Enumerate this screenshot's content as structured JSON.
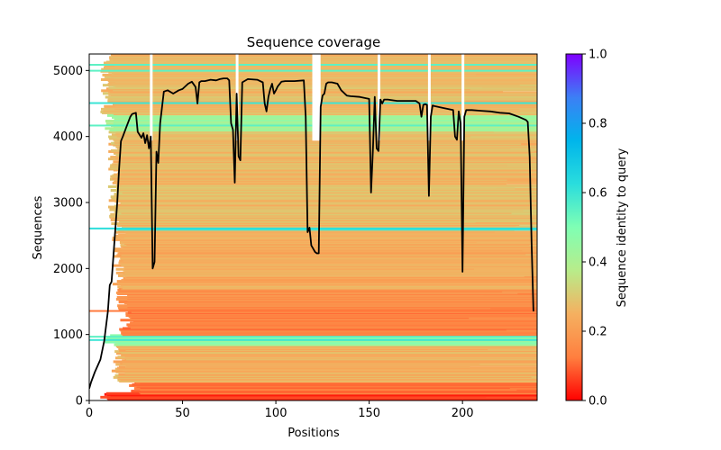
{
  "chart_data": {
    "type": "heatmap",
    "title": "Sequence coverage",
    "xlabel": "Positions",
    "ylabel": "Sequences",
    "xlim": [
      0,
      240
    ],
    "ylim": [
      0,
      5250
    ],
    "xticks": [
      0,
      50,
      100,
      150,
      200
    ],
    "yticks": [
      0,
      1000,
      2000,
      3000,
      4000,
      5000
    ],
    "grid": false,
    "colorbar": {
      "label": "Sequence identity to query",
      "range": [
        0.0,
        1.0
      ],
      "ticks": [
        "0.0",
        "0.2",
        "0.4",
        "0.6",
        "0.8",
        "1.0"
      ],
      "colormap": "rainbow",
      "stops": [
        "#ff0000",
        "#ff7f3f",
        "#f5b060",
        "#b8ec8a",
        "#7fffb4",
        "#2adddd",
        "#00b5eb",
        "#3c7ff5",
        "#7f00ff"
      ]
    },
    "coverage_line": {
      "name": "coverage",
      "color": "#000000",
      "x": [
        0,
        1,
        3,
        6,
        8,
        10,
        11,
        12,
        14,
        15,
        16,
        17,
        18,
        20,
        22,
        23,
        25,
        26,
        28,
        29,
        30,
        31,
        32,
        33,
        34,
        35,
        36,
        37,
        38,
        40,
        42,
        45,
        48,
        50,
        53,
        55,
        57,
        58,
        59,
        60,
        62,
        65,
        68,
        70,
        72,
        74,
        75,
        76,
        77,
        78,
        79,
        80,
        81,
        82,
        85,
        90,
        93,
        94,
        95,
        96,
        97,
        98,
        99,
        100,
        101,
        103,
        105,
        110,
        115,
        116,
        117,
        118,
        119,
        120,
        121,
        122,
        123,
        124,
        125,
        126,
        127,
        128,
        130,
        133,
        135,
        138,
        140,
        145,
        150,
        151,
        152,
        153,
        154,
        155,
        156,
        157,
        158,
        160,
        165,
        170,
        175,
        177,
        178,
        179,
        180,
        181,
        182,
        183,
        184,
        185,
        190,
        195,
        196,
        197,
        198,
        199,
        200,
        201,
        202,
        205,
        210,
        215,
        220,
        225,
        230,
        234,
        235,
        236,
        237,
        238
      ],
      "y": [
        180,
        280,
        430,
        620,
        900,
        1350,
        1750,
        1800,
        2600,
        3000,
        3500,
        3930,
        4000,
        4150,
        4300,
        4340,
        4360,
        4070,
        3980,
        4050,
        3900,
        4020,
        3820,
        4000,
        2000,
        2100,
        3770,
        3600,
        4200,
        4680,
        4700,
        4650,
        4700,
        4720,
        4800,
        4830,
        4750,
        4500,
        4820,
        4840,
        4840,
        4860,
        4850,
        4870,
        4880,
        4880,
        4850,
        4200,
        4100,
        3300,
        4650,
        3700,
        3640,
        4820,
        4870,
        4860,
        4820,
        4500,
        4380,
        4600,
        4720,
        4800,
        4650,
        4700,
        4760,
        4830,
        4840,
        4840,
        4850,
        4300,
        2550,
        2620,
        2350,
        2300,
        2250,
        2230,
        2230,
        4450,
        4620,
        4650,
        4800,
        4820,
        4820,
        4800,
        4700,
        4620,
        4610,
        4600,
        4570,
        3150,
        3800,
        4600,
        3820,
        3780,
        4560,
        4500,
        4560,
        4560,
        4540,
        4540,
        4540,
        4500,
        4300,
        4480,
        4490,
        4480,
        3100,
        4300,
        4470,
        4460,
        4430,
        4400,
        4000,
        3950,
        4380,
        4200,
        1950,
        4300,
        4400,
        4400,
        4390,
        4380,
        4360,
        4350,
        4300,
        4250,
        4220,
        3700,
        2400,
        1350
      ]
    },
    "identity_bands": [
      {
        "y0": 0,
        "y1": 120,
        "x0": 4,
        "x1": 240,
        "identity": 0.05
      },
      {
        "y0": 120,
        "y1": 300,
        "x0": 20,
        "x1": 240,
        "identity": 0.12
      },
      {
        "y0": 300,
        "y1": 850,
        "x0": 12,
        "x1": 240,
        "identity": 0.25
      },
      {
        "y0": 850,
        "y1": 1000,
        "x0": 8,
        "x1": 240,
        "identity": 0.45
      },
      {
        "y0": 1000,
        "y1": 1400,
        "x0": 16,
        "x1": 240,
        "identity": 0.13
      },
      {
        "y0": 1400,
        "y1": 1700,
        "x0": 14,
        "x1": 240,
        "identity": 0.16
      },
      {
        "y0": 1700,
        "y1": 2600,
        "x0": 12,
        "x1": 240,
        "identity": 0.24
      },
      {
        "y0": 2600,
        "y1": 2630,
        "x0": 14,
        "x1": 240,
        "identity": 0.6
      },
      {
        "y0": 2630,
        "y1": 4100,
        "x0": 10,
        "x1": 240,
        "identity": 0.27
      },
      {
        "y0": 4100,
        "y1": 4350,
        "x0": 8,
        "x1": 240,
        "identity": 0.42
      },
      {
        "y0": 4350,
        "y1": 5250,
        "x0": 6,
        "x1": 240,
        "identity": 0.27
      }
    ],
    "highlight_rows": [
      {
        "y": 930,
        "identity": 0.6
      },
      {
        "y": 980,
        "identity": 0.55
      },
      {
        "y": 1370,
        "identity": 0.12
      },
      {
        "y": 2620,
        "identity": 0.62
      },
      {
        "y": 4180,
        "identity": 0.55
      },
      {
        "y": 4520,
        "identity": 0.6
      },
      {
        "y": 5010,
        "identity": 0.55
      },
      {
        "y": 5100,
        "identity": 0.55
      }
    ],
    "gap_columns": [
      33,
      79,
      120,
      121,
      122,
      123,
      155,
      182,
      200
    ]
  }
}
